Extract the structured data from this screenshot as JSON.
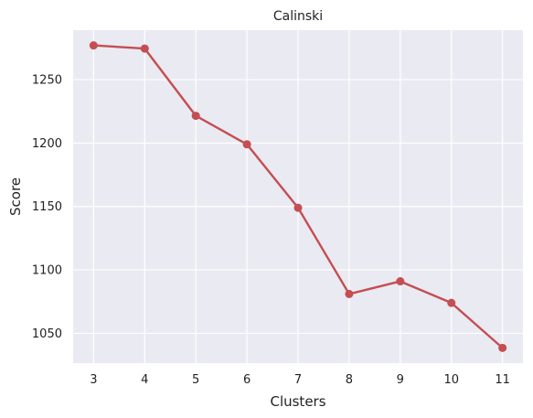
{
  "chart_data": {
    "type": "line",
    "title": "Calinski",
    "xlabel": "Clusters",
    "ylabel": "Score",
    "x": [
      3,
      4,
      5,
      6,
      7,
      8,
      9,
      10,
      11
    ],
    "series": [
      {
        "values": [
          1277,
          1274.5,
          1221.5,
          1199,
          1149,
          1081,
          1091,
          1074,
          1038.5
        ],
        "color": "#c44e52"
      }
    ],
    "xticks": [
      "3",
      "4",
      "5",
      "6",
      "7",
      "8",
      "9",
      "10",
      "11"
    ],
    "yticks": [
      "1050",
      "1100",
      "1150",
      "1200",
      "1250"
    ],
    "ytick_values": [
      1050,
      1100,
      1150,
      1200,
      1250
    ],
    "xlim": [
      2.6,
      11.4
    ],
    "ylim": [
      1026.5,
      1289
    ],
    "grid": true,
    "background": "#eaeaf2",
    "gridColor": "#ffffff"
  }
}
